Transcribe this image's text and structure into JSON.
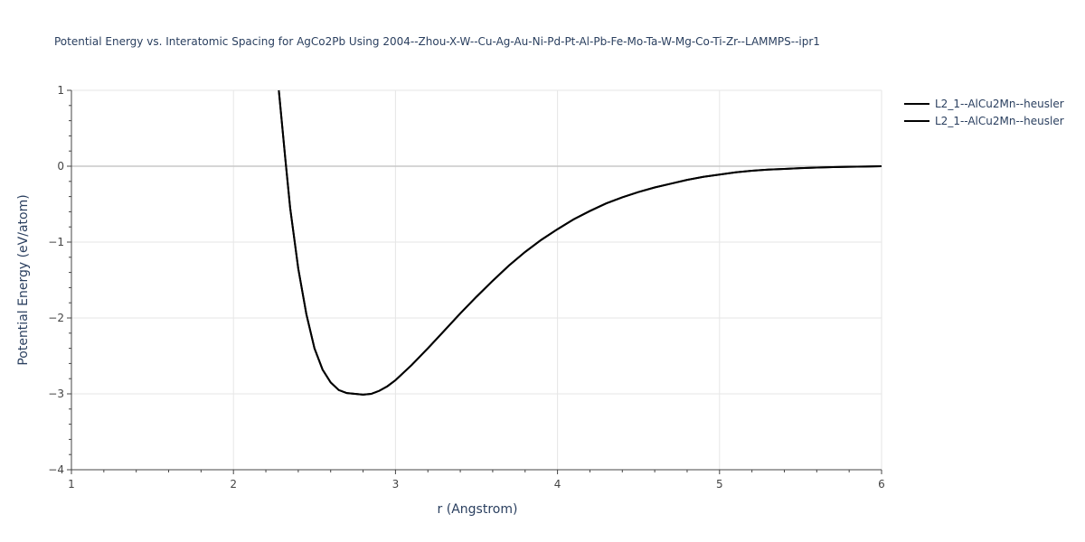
{
  "chart_data": {
    "type": "line",
    "title": "Potential Energy vs. Interatomic Spacing for AgCo2Pb Using 2004--Zhou-X-W--Cu-Ag-Au-Ni-Pd-Pt-Al-Pb-Fe-Mo-Ta-W-Mg-Co-Ti-Zr--LAMMPS--ipr1",
    "xlabel": "r (Angstrom)",
    "ylabel": "Potential Energy (eV/atom)",
    "xlim": [
      1,
      6
    ],
    "ylim": [
      -4,
      1
    ],
    "xticks": [
      1,
      2,
      3,
      4,
      5,
      6
    ],
    "yticks": [
      1,
      0,
      -1,
      -2,
      -3,
      -4
    ],
    "yticklabels": [
      "1",
      "0",
      "−1",
      "−2",
      "−3",
      "−4"
    ],
    "grid": true,
    "legend_position": "top-right",
    "series": [
      {
        "name": "L2_1--AlCu2Mn--heusler",
        "color": "#000000",
        "x": [
          2.28,
          2.3,
          2.32,
          2.35,
          2.4,
          2.45,
          2.5,
          2.55,
          2.6,
          2.65,
          2.7,
          2.75,
          2.8,
          2.85,
          2.9,
          2.95,
          3.0,
          3.1,
          3.2,
          3.3,
          3.4,
          3.5,
          3.6,
          3.7,
          3.8,
          3.9,
          4.0,
          4.1,
          4.2,
          4.3,
          4.4,
          4.5,
          4.6,
          4.7,
          4.8,
          4.9,
          5.0,
          5.1,
          5.2,
          5.3,
          5.4,
          5.5,
          5.6,
          5.7,
          5.8,
          5.9,
          6.0
        ],
        "y": [
          1.0,
          0.55,
          0.1,
          -0.55,
          -1.35,
          -1.95,
          -2.4,
          -2.68,
          -2.85,
          -2.95,
          -2.99,
          -3.0,
          -3.01,
          -3.0,
          -2.96,
          -2.9,
          -2.82,
          -2.62,
          -2.4,
          -2.17,
          -1.94,
          -1.72,
          -1.51,
          -1.31,
          -1.13,
          -0.97,
          -0.83,
          -0.7,
          -0.59,
          -0.49,
          -0.41,
          -0.34,
          -0.28,
          -0.23,
          -0.18,
          -0.14,
          -0.11,
          -0.08,
          -0.06,
          -0.045,
          -0.035,
          -0.025,
          -0.018,
          -0.012,
          -0.008,
          -0.004,
          0.0
        ]
      },
      {
        "name": "L2_1--AlCu2Mn--heusler",
        "color": "#000000",
        "x": [
          2.28,
          2.3,
          2.32,
          2.35,
          2.4,
          2.45,
          2.5,
          2.55,
          2.6,
          2.65,
          2.7,
          2.75,
          2.8,
          2.85,
          2.9,
          2.95,
          3.0,
          3.1,
          3.2,
          3.3,
          3.4,
          3.5,
          3.6,
          3.7,
          3.8,
          3.9,
          4.0,
          4.1,
          4.2,
          4.3,
          4.4,
          4.5,
          4.6,
          4.7,
          4.8,
          4.9,
          5.0,
          5.1,
          5.2,
          5.3,
          5.4,
          5.5,
          5.6,
          5.7,
          5.8,
          5.9,
          6.0
        ],
        "y": [
          1.0,
          0.55,
          0.1,
          -0.55,
          -1.35,
          -1.95,
          -2.4,
          -2.68,
          -2.85,
          -2.95,
          -2.99,
          -3.0,
          -3.01,
          -3.0,
          -2.96,
          -2.9,
          -2.82,
          -2.62,
          -2.4,
          -2.17,
          -1.94,
          -1.72,
          -1.51,
          -1.31,
          -1.13,
          -0.97,
          -0.83,
          -0.7,
          -0.59,
          -0.49,
          -0.41,
          -0.34,
          -0.28,
          -0.23,
          -0.18,
          -0.14,
          -0.11,
          -0.08,
          -0.06,
          -0.045,
          -0.035,
          -0.025,
          -0.018,
          -0.012,
          -0.008,
          -0.004,
          0.0
        ]
      }
    ]
  },
  "colors": {
    "grid": "#e6e6e6",
    "zeroline": "#c8c8c8",
    "axis": "#444444",
    "text": "#2a3f5f"
  }
}
